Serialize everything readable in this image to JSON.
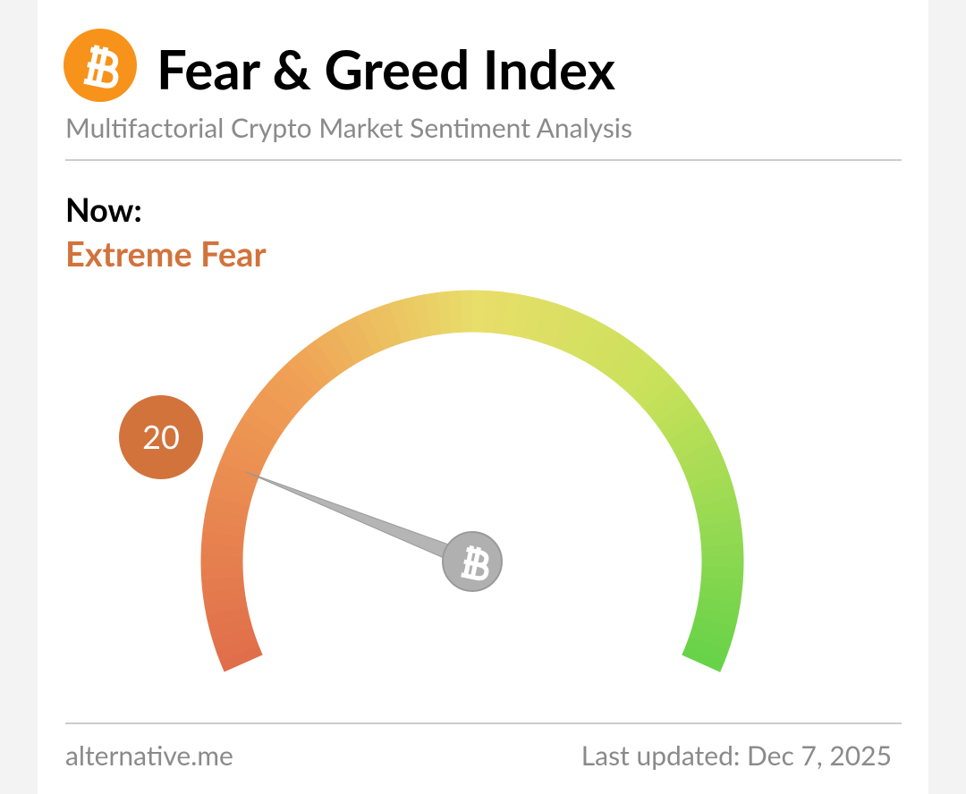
{
  "chart_data": {
    "type": "gauge",
    "title": "Fear & Greed Index",
    "subtitle": "Multifactorial Crypto Market Sentiment Analysis",
    "label": "Now:",
    "classification": "Extreme Fear",
    "value": 20,
    "ylim": [
      0,
      100
    ],
    "color": "#d2733c",
    "source": "alternative.me",
    "updated": "Last updated: Dec 7, 2025"
  }
}
